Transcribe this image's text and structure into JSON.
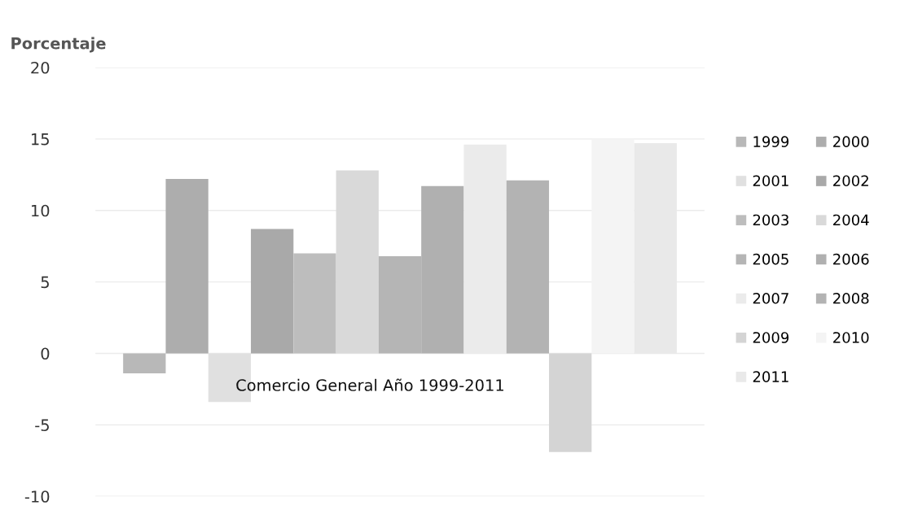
{
  "chart_data": {
    "type": "bar",
    "ylabel": "Porcentaje",
    "categories": [
      null
    ],
    "series": [
      {
        "name": "1999",
        "color": "#b8b8b8",
        "values": [
          -1.4
        ]
      },
      {
        "name": "2000",
        "color": "#adadad",
        "values": [
          12.2
        ]
      },
      {
        "name": "2001",
        "color": "#e0e0e0",
        "values": [
          -3.4
        ]
      },
      {
        "name": "2002",
        "color": "#a9a9a9",
        "values": [
          8.7
        ]
      },
      {
        "name": "2003",
        "color": "#bdbdbd",
        "values": [
          7.0
        ]
      },
      {
        "name": "2004",
        "color": "#d9d9d9",
        "values": [
          12.8
        ]
      },
      {
        "name": "2005",
        "color": "#b5b5b5",
        "values": [
          6.8
        ]
      },
      {
        "name": "2006",
        "color": "#b0b0b0",
        "values": [
          11.7
        ]
      },
      {
        "name": "2007",
        "color": "#ebebeb",
        "values": [
          14.6
        ]
      },
      {
        "name": "2008",
        "color": "#b3b3b3",
        "values": [
          12.1
        ]
      },
      {
        "name": "2009",
        "color": "#d4d4d4",
        "values": [
          -6.9
        ]
      },
      {
        "name": "2010",
        "color": "#f4f4f4",
        "values": [
          15.0
        ]
      },
      {
        "name": "2011",
        "color": "#e9e9e9",
        "values": [
          14.7
        ]
      }
    ],
    "ylim": [
      -10,
      20
    ],
    "yticks": [
      -10,
      -5,
      0,
      5,
      10,
      15,
      20
    ],
    "grid": "y",
    "legend": "right",
    "annotations": [
      "Comercio General Año 1999-2011"
    ]
  }
}
